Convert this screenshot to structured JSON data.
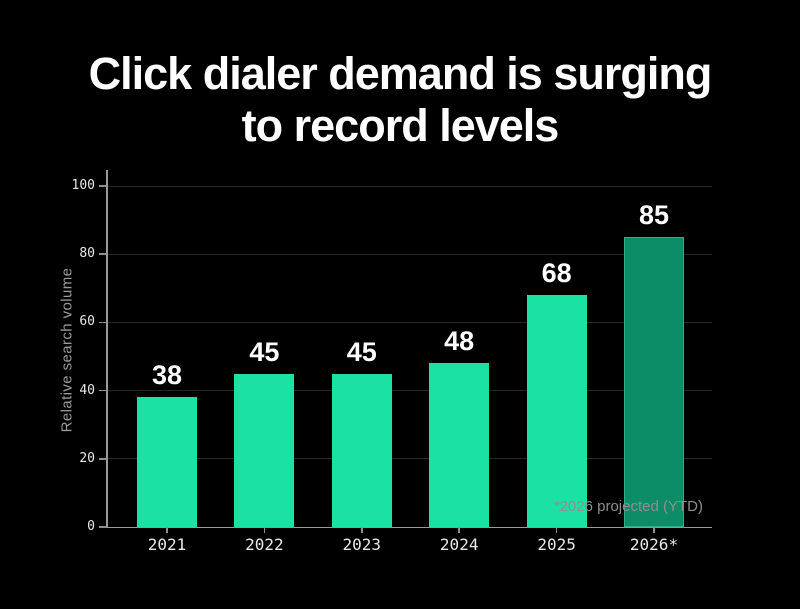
{
  "title": {
    "line1": "Click dialer demand is surging",
    "line2": "to record levels"
  },
  "chart_data": {
    "type": "bar",
    "title": "Click dialer demand is surging to record levels",
    "categories": [
      "2021",
      "2022",
      "2023",
      "2024",
      "2025",
      "2026*"
    ],
    "values": [
      38,
      45,
      45,
      48,
      68,
      85
    ],
    "xlabel": "",
    "ylabel": "Relative search volume",
    "ylim": [
      0,
      100
    ],
    "yticks": [
      0,
      20,
      40,
      60,
      80,
      100
    ],
    "grid": true,
    "legend_position": "none",
    "annotation": "*2026 projected (YTD)",
    "projected_index": 5
  },
  "colors": {
    "background": "#000000",
    "bar": "#1be1a3",
    "bar_projected": "#0d8c68",
    "bar_projected_border": "#2bb184",
    "gridline": "#262626",
    "axis": "#999999",
    "tick_label": "#e8e8e8",
    "value_label": "#ffffff",
    "axis_title": "#9a9a9a",
    "footnote": "#8f8f8f",
    "title_text": "#ffffff"
  }
}
